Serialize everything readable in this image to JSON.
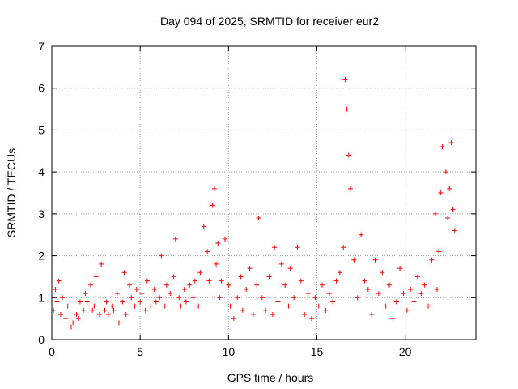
{
  "chart_data": {
    "type": "scatter",
    "title": "Day 094 of 2025, SRMTID for receiver eur2",
    "xlabel": "GPS time / hours",
    "ylabel": "SRMTID / TECUs",
    "xlim": [
      0,
      24
    ],
    "ylim": [
      0,
      7
    ],
    "xticks": [
      0,
      5,
      10,
      15,
      20
    ],
    "yticks": [
      0,
      1,
      2,
      3,
      4,
      5,
      6,
      7
    ],
    "grid": true,
    "marker": "plus",
    "color": "#ff0000",
    "series": [
      {
        "name": "SRMTID",
        "x": [
          0.1,
          0.2,
          0.3,
          0.4,
          0.5,
          0.6,
          0.8,
          0.9,
          1.1,
          1.2,
          1.4,
          1.5,
          1.6,
          1.8,
          1.9,
          2.0,
          2.2,
          2.3,
          2.4,
          2.5,
          2.7,
          2.8,
          3.0,
          3.1,
          3.2,
          3.4,
          3.5,
          3.7,
          3.8,
          4.0,
          4.1,
          4.2,
          4.4,
          4.5,
          4.7,
          4.8,
          5.0,
          5.1,
          5.3,
          5.4,
          5.6,
          5.8,
          5.9,
          6.1,
          6.2,
          6.4,
          6.5,
          6.7,
          6.9,
          7.0,
          7.2,
          7.3,
          7.5,
          7.6,
          7.8,
          8.0,
          8.1,
          8.3,
          8.4,
          8.6,
          8.8,
          8.9,
          9.1,
          9.2,
          9.3,
          9.4,
          9.5,
          9.6,
          9.8,
          10.0,
          10.1,
          10.3,
          10.5,
          10.7,
          10.8,
          11.0,
          11.2,
          11.4,
          11.6,
          11.7,
          11.9,
          12.1,
          12.3,
          12.5,
          12.6,
          12.8,
          13.0,
          13.2,
          13.4,
          13.5,
          13.7,
          13.9,
          14.1,
          14.3,
          14.5,
          14.7,
          14.9,
          15.1,
          15.3,
          15.5,
          15.7,
          15.9,
          16.1,
          16.3,
          16.5,
          16.6,
          16.7,
          16.8,
          16.9,
          17.1,
          17.3,
          17.5,
          17.7,
          17.9,
          18.1,
          18.3,
          18.5,
          18.7,
          18.9,
          19.1,
          19.3,
          19.5,
          19.7,
          19.9,
          20.1,
          20.3,
          20.5,
          20.7,
          20.9,
          21.1,
          21.3,
          21.5,
          21.7,
          21.8,
          21.9,
          22.0,
          22.1,
          22.3,
          22.4,
          22.5,
          22.6,
          22.7,
          22.8
        ],
        "y": [
          0.7,
          1.2,
          0.9,
          1.4,
          0.6,
          1.0,
          0.5,
          0.8,
          0.3,
          0.4,
          0.6,
          0.5,
          0.9,
          0.7,
          1.1,
          0.9,
          1.3,
          0.7,
          0.8,
          1.5,
          0.6,
          1.8,
          0.7,
          0.9,
          0.6,
          0.8,
          0.7,
          1.1,
          0.4,
          0.9,
          1.6,
          0.6,
          1.3,
          1.0,
          0.8,
          1.2,
          0.9,
          1.1,
          0.7,
          1.4,
          0.8,
          1.2,
          0.9,
          1.0,
          2.0,
          0.8,
          1.3,
          1.1,
          1.5,
          2.4,
          1.0,
          0.8,
          1.2,
          0.9,
          1.3,
          1.0,
          1.4,
          0.8,
          1.6,
          2.7,
          2.1,
          1.4,
          3.2,
          3.6,
          1.8,
          2.3,
          1.0,
          1.4,
          2.4,
          1.3,
          0.8,
          0.5,
          1.0,
          1.5,
          0.7,
          1.2,
          1.7,
          0.6,
          1.3,
          2.9,
          1.0,
          0.7,
          1.5,
          0.6,
          2.2,
          0.9,
          1.8,
          1.3,
          0.8,
          1.7,
          1.0,
          2.2,
          1.4,
          0.6,
          1.1,
          0.5,
          1.0,
          0.8,
          1.3,
          0.7,
          1.1,
          0.9,
          1.4,
          1.6,
          2.2,
          6.2,
          5.5,
          4.4,
          3.6,
          1.9,
          1.0,
          2.5,
          1.4,
          1.2,
          0.6,
          1.9,
          1.1,
          1.6,
          0.8,
          1.3,
          0.5,
          0.9,
          1.7,
          1.1,
          0.7,
          1.2,
          0.9,
          1.5,
          1.1,
          1.3,
          0.8,
          1.9,
          3.0,
          1.2,
          2.1,
          3.5,
          4.6,
          4.0,
          2.9,
          3.6,
          4.7,
          3.1,
          2.6
        ]
      }
    ]
  }
}
